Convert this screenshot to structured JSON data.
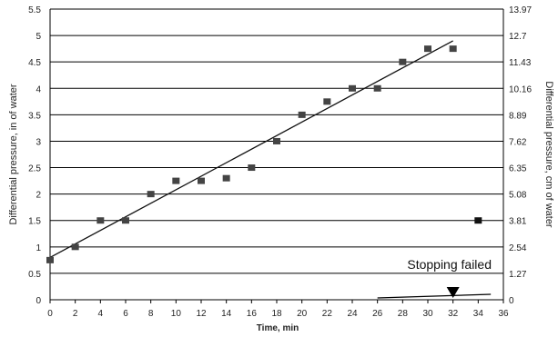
{
  "chart_data": {
    "type": "scatter",
    "xlabel": "Time, min",
    "ylabel": "Differential pressure, in of water",
    "y2label": "Differential pressure, cm of water",
    "xlim": [
      0,
      36
    ],
    "ylim": [
      0,
      5.5
    ],
    "y2lim": [
      0,
      13.97
    ],
    "x_ticks": [
      0,
      2,
      4,
      6,
      8,
      10,
      12,
      14,
      16,
      18,
      20,
      22,
      24,
      26,
      28,
      30,
      32,
      34,
      36
    ],
    "y_ticks": [
      "0",
      "0.5",
      "1",
      "1.5",
      "2",
      "2.5",
      "3",
      "3.5",
      "4",
      "4.5",
      "5",
      "5.5"
    ],
    "y2_ticks": [
      "0",
      "1.27",
      "2.54",
      "3.81",
      "5.08",
      "6.35",
      "7.62",
      "8.89",
      "10.16",
      "11.43",
      "12.7",
      "13.97"
    ],
    "grid": "horizontal",
    "series": [
      {
        "x": [
          0,
          2,
          4,
          6,
          8,
          10,
          12,
          14,
          16,
          18,
          20,
          22,
          24,
          26,
          28,
          30,
          32
        ],
        "y": [
          0.75,
          1.0,
          1.5,
          1.5,
          2.0,
          2.25,
          2.25,
          2.3,
          2.5,
          3.0,
          3.5,
          3.75,
          4.0,
          4.0,
          4.5,
          4.75,
          4.75
        ],
        "color": "#444444"
      },
      {
        "x": [
          34
        ],
        "y": [
          1.5
        ],
        "color": "#111111"
      }
    ],
    "trendline": {
      "x": [
        0,
        32
      ],
      "y": [
        0.8,
        4.9
      ]
    },
    "annotation": {
      "text": "Stopping failed",
      "marker_x": 32
    }
  }
}
